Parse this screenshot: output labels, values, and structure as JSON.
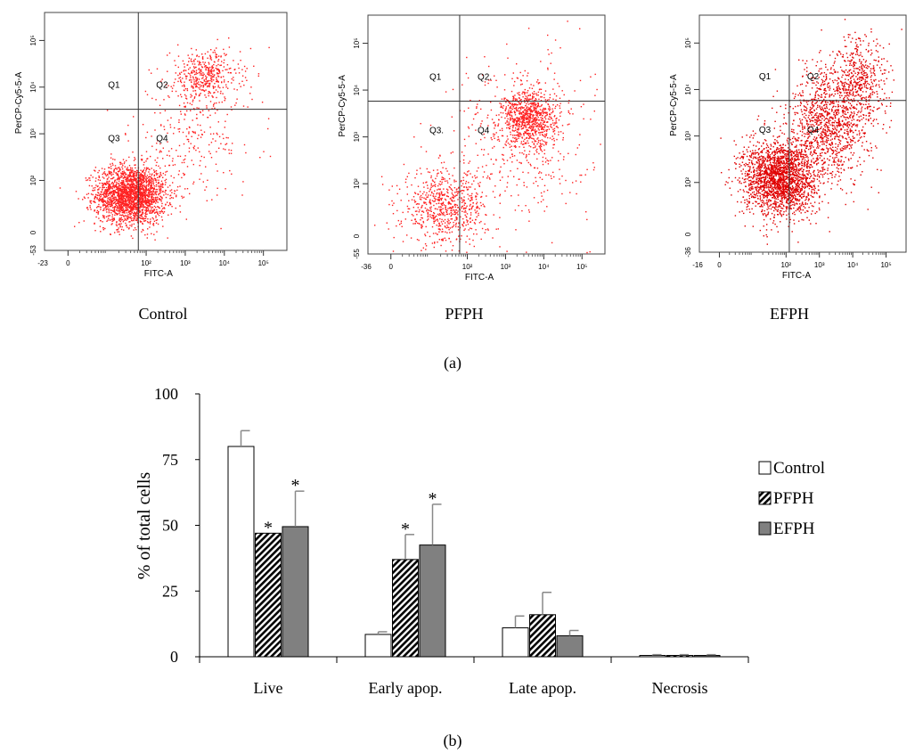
{
  "panel_a_label": "(a)",
  "panel_b_label": "(b)",
  "chart_data": [
    {
      "type": "scatter",
      "caption": "Control",
      "xlabel": "FITC-A",
      "ylabel": "PerCP-Cy5-5-A",
      "x_min_label": "-23",
      "y_min_label": "-53",
      "x_ticks": [
        "0",
        "10²",
        "10³",
        "10⁴",
        "10⁵"
      ],
      "y_ticks": [
        "10²",
        "10³",
        "10⁴",
        "10⁵"
      ],
      "quadrants": [
        "Q1",
        "Q2",
        "Q3",
        "Q4"
      ],
      "point_color": "#ff2020",
      "clusters": [
        {
          "cx": 1.6,
          "cy": 1.7,
          "sx": 0.45,
          "sy": 0.32,
          "n": 2200
        },
        {
          "cx": 3.5,
          "cy": 4.25,
          "sx": 0.45,
          "sy": 0.28,
          "n": 420
        },
        {
          "cx": 3.2,
          "cy": 3.0,
          "sx": 0.8,
          "sy": 0.65,
          "n": 260
        }
      ]
    },
    {
      "type": "scatter",
      "caption": "PFPH",
      "xlabel": "FITC-A",
      "ylabel": "PerCP-Cy5-5-A",
      "x_min_label": "-36",
      "y_min_label": "-55",
      "x_ticks": [
        "0",
        "10²",
        "10³",
        "10⁴",
        "10⁵"
      ],
      "y_ticks": [
        "10²",
        "10³",
        "10⁴",
        "10⁵"
      ],
      "quadrants": [
        "Q1",
        "Q2.",
        "Q3.",
        "Q4"
      ],
      "point_color": "#ff2020",
      "clusters": [
        {
          "cx": 1.4,
          "cy": 1.5,
          "sx": 0.55,
          "sy": 0.4,
          "n": 700
        },
        {
          "cx": 3.6,
          "cy": 3.4,
          "sx": 0.35,
          "sy": 0.3,
          "n": 750
        },
        {
          "cx": 3.4,
          "cy": 3.0,
          "sx": 0.9,
          "sy": 0.9,
          "n": 450
        }
      ]
    },
    {
      "type": "scatter",
      "caption": "EFPH",
      "xlabel": "FITC-A",
      "ylabel": "PerCP-Cy5-5-A",
      "x_min_label": "-16",
      "y_min_label": "-36",
      "x_ticks": [
        "0",
        "10²",
        "10³",
        "10⁴",
        "10⁵"
      ],
      "y_ticks": [
        "10²",
        "10³",
        "10⁴",
        "10⁵"
      ],
      "quadrants": [
        "Q1",
        "Q2",
        "Q3",
        "Q4"
      ],
      "point_color": "#e00000",
      "clusters": [
        {
          "cx": 1.8,
          "cy": 2.1,
          "sx": 0.55,
          "sy": 0.4,
          "n": 2100
        },
        {
          "cx": 3.3,
          "cy": 3.3,
          "sx": 0.6,
          "sy": 0.6,
          "n": 1100
        },
        {
          "cx": 4.2,
          "cy": 4.2,
          "sx": 0.45,
          "sy": 0.45,
          "n": 450
        }
      ]
    },
    {
      "type": "bar",
      "categories": [
        "Live",
        "Early apop.",
        "Late apop.",
        "Necrosis"
      ],
      "series": [
        {
          "name": "Control",
          "values": [
            80,
            8.5,
            11,
            0.5
          ],
          "errors": [
            6,
            1,
            4.5,
            0.3
          ],
          "significant": [
            false,
            false,
            false,
            false
          ],
          "fill": "#ffffff"
        },
        {
          "name": "PFPH",
          "values": [
            47,
            37,
            16,
            0.5
          ],
          "errors": [
            0,
            9.5,
            8.5,
            0.3
          ],
          "significant": [
            true,
            true,
            false,
            false
          ],
          "fill": "hatch"
        },
        {
          "name": "EFPH",
          "values": [
            49.5,
            42.5,
            8,
            0.5
          ],
          "errors": [
            13.5,
            15.5,
            2,
            0.3
          ],
          "significant": [
            true,
            true,
            false,
            false
          ],
          "fill": "#808080"
        }
      ],
      "ylabel": "% of total cells",
      "ylim": [
        0,
        100
      ],
      "yticks": [
        0,
        25,
        50,
        75,
        100
      ],
      "significance_marker": "*",
      "legend_position": "right"
    }
  ]
}
